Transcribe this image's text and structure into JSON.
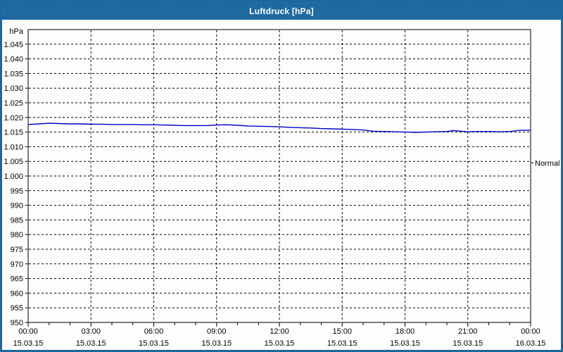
{
  "window": {
    "title": "Luftdruck [hPa]"
  },
  "colors": {
    "titlebar": "#1c689e",
    "window_border": "#1c689e",
    "title_text": "#ffffff",
    "plot_background": "#fdfdfd",
    "grid": "#000000",
    "axis": "#000000",
    "tick_text": "#000000",
    "series_line": "#0000cc"
  },
  "chart_data": {
    "type": "line",
    "title": "Luftdruck [hPa]",
    "unit_label": "hPa",
    "ylabel": "hPa",
    "xlabel": "",
    "ylim": [
      950,
      1050
    ],
    "ytick_step": 5,
    "ytick_labels_top_to_bottom": [
      "1.045",
      "1.040",
      "1.035",
      "1.030",
      "1.025",
      "1.020",
      "1.015",
      "1.010",
      "1.005",
      "1.000",
      "995",
      "990",
      "985",
      "980",
      "975",
      "970",
      "965",
      "960",
      "955",
      "950"
    ],
    "xlim_hours": [
      0,
      24
    ],
    "xtick_step_hours": 3,
    "x_minor_tick_step_hours": 1,
    "xticks": [
      {
        "time": "00:00",
        "date": "15.03.15"
      },
      {
        "time": "03:00",
        "date": "15.03.15"
      },
      {
        "time": "06:00",
        "date": "15.03.15"
      },
      {
        "time": "09:00",
        "date": "15.03.15"
      },
      {
        "time": "12:00",
        "date": "15.03.15"
      },
      {
        "time": "15:00",
        "date": "15.03.15"
      },
      {
        "time": "18:00",
        "date": "15.03.15"
      },
      {
        "time": "21:00",
        "date": "15.03.15"
      },
      {
        "time": "00:00",
        "date": "16.03.15"
      }
    ],
    "grid": "dashed",
    "legend_position": "none",
    "right_axis_marker": {
      "label": "Normal",
      "value": 1004.5
    },
    "series": [
      {
        "name": "Luftdruck",
        "color": "#0000cc",
        "points_hour_value": [
          [
            0,
            1017.6
          ],
          [
            0.5,
            1017.8
          ],
          [
            1,
            1018.0
          ],
          [
            1.5,
            1017.9
          ],
          [
            2,
            1017.8
          ],
          [
            2.5,
            1017.8
          ],
          [
            3,
            1017.7
          ],
          [
            3.5,
            1017.7
          ],
          [
            4,
            1017.6
          ],
          [
            5,
            1017.6
          ],
          [
            5.5,
            1017.5
          ],
          [
            6,
            1017.5
          ],
          [
            6.5,
            1017.4
          ],
          [
            7,
            1017.3
          ],
          [
            7.5,
            1017.2
          ],
          [
            8,
            1017.2
          ],
          [
            8.5,
            1017.2
          ],
          [
            9,
            1017.4
          ],
          [
            9.5,
            1017.5
          ],
          [
            10,
            1017.3
          ],
          [
            10.5,
            1017.1
          ],
          [
            11,
            1017.0
          ],
          [
            11.5,
            1016.9
          ],
          [
            12,
            1016.8
          ],
          [
            12.5,
            1016.6
          ],
          [
            13,
            1016.5
          ],
          [
            13.5,
            1016.4
          ],
          [
            14,
            1016.2
          ],
          [
            14.5,
            1016.1
          ],
          [
            15,
            1016.0
          ],
          [
            15.5,
            1015.9
          ],
          [
            16,
            1015.7
          ],
          [
            16.5,
            1015.3
          ],
          [
            17,
            1015.2
          ],
          [
            17.5,
            1015.1
          ],
          [
            18,
            1015.0
          ],
          [
            18.5,
            1014.9
          ],
          [
            19,
            1015.0
          ],
          [
            19.5,
            1015.1
          ],
          [
            20,
            1015.2
          ],
          [
            20.3,
            1015.5
          ],
          [
            20.7,
            1015.3
          ],
          [
            21,
            1015.1
          ],
          [
            21.5,
            1015.2
          ],
          [
            22,
            1015.2
          ],
          [
            22.5,
            1015.1
          ],
          [
            23,
            1015.2
          ],
          [
            23.5,
            1015.6
          ],
          [
            24,
            1015.6
          ]
        ]
      }
    ]
  }
}
